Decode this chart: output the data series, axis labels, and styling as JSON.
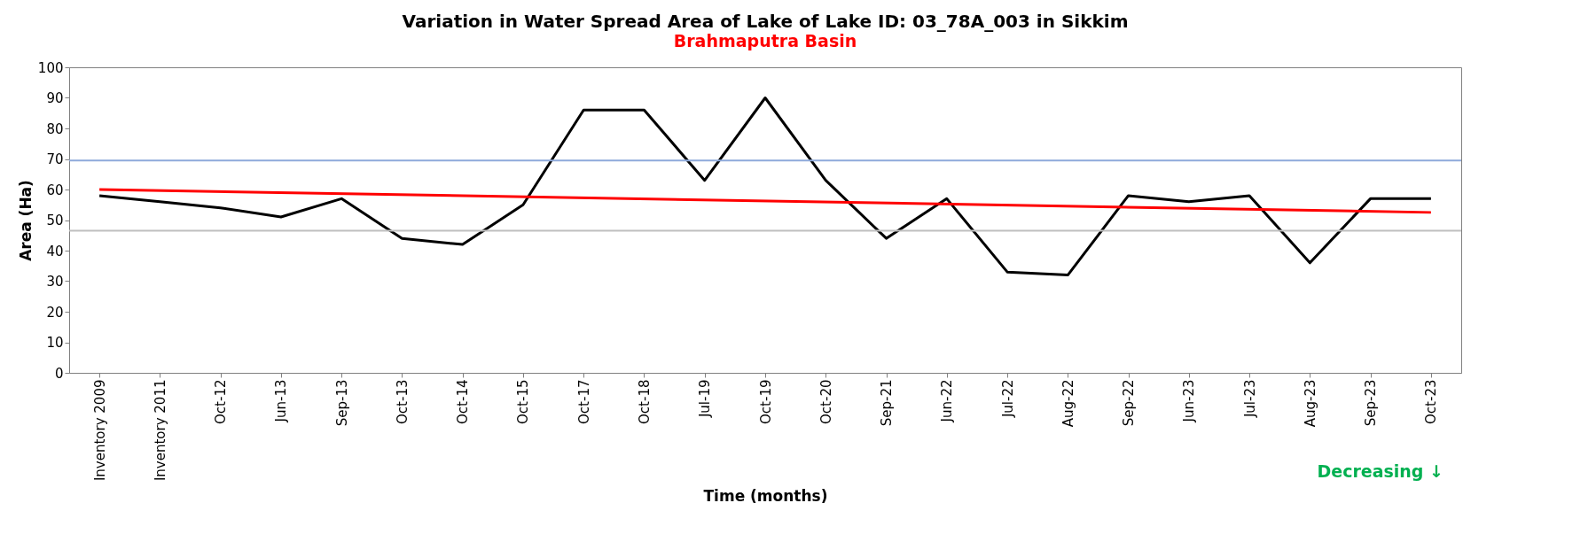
{
  "chart_data": {
    "type": "line",
    "title": "Variation in Water Spread Area of Lake of Lake ID: 03_78A_003 in Sikkim",
    "subtitle": "Brahmaputra Basin",
    "xlabel": "Time (months)",
    "ylabel": "Area (Ha)",
    "categories": [
      "Inventory 2009",
      "Inventory 2011",
      "Oct-12",
      "Jun-13",
      "Sep-13",
      "Oct-13",
      "Oct-14",
      "Oct-15",
      "Oct-17",
      "Oct-18",
      "Jul-19",
      "Oct-19",
      "Oct-20",
      "Sep-21",
      "Jun-22",
      "Jul-22",
      "Aug-22",
      "Sep-22",
      "Jun-23",
      "Jul-23",
      "Aug-23",
      "Sep-23",
      "Oct-23"
    ],
    "series": [
      {
        "color": "#000000",
        "values": [
          58,
          56,
          54,
          51,
          57,
          44,
          42,
          55,
          86,
          86,
          63,
          90,
          63,
          44,
          57,
          33,
          32,
          58,
          56,
          58,
          36,
          57,
          57
        ]
      },
      {
        "type": "line",
        "color": "#ff0000",
        "x": [
          "Inventory 2009",
          "Oct-23"
        ],
        "values": [
          60,
          52.5
        ]
      }
    ],
    "ylim": [
      0,
      100
    ],
    "yticks": [
      0,
      10,
      20,
      30,
      40,
      50,
      60,
      70,
      80,
      90,
      100
    ],
    "ref_lines": [
      {
        "axis": "y",
        "value": 69.5,
        "color": "#8eaadb"
      },
      {
        "axis": "y",
        "value": 46.5,
        "color": "#bfbfbf"
      }
    ],
    "annotations": [
      "Decreasing ↓"
    ],
    "grid": false,
    "marker": "none"
  }
}
